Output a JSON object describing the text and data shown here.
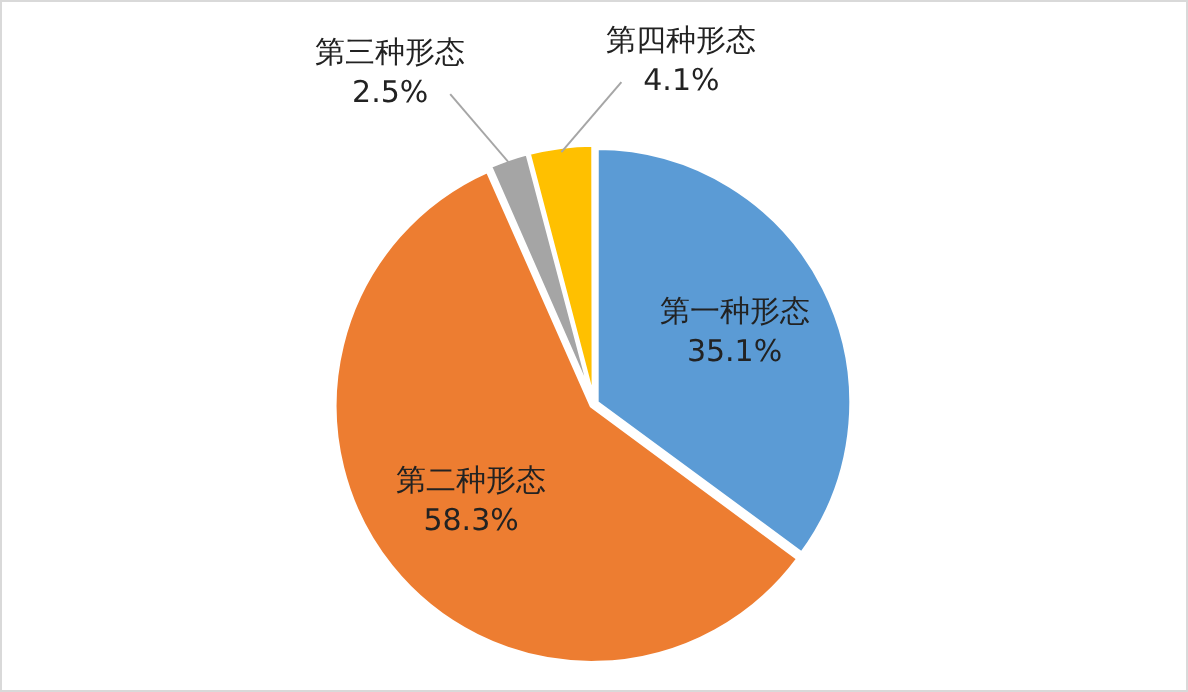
{
  "chart_data": {
    "type": "pie",
    "categories": [
      "第一种形态",
      "第二种形态",
      "第三种形态",
      "第四种形态"
    ],
    "values": [
      35.1,
      58.3,
      2.5,
      4.1
    ],
    "value_labels": [
      "35.1%",
      "58.3%",
      "2.5%",
      "4.1%"
    ],
    "colors": [
      "#5b9bd5",
      "#ed7d31",
      "#a5a5a5",
      "#ffc000"
    ],
    "legend": false
  }
}
